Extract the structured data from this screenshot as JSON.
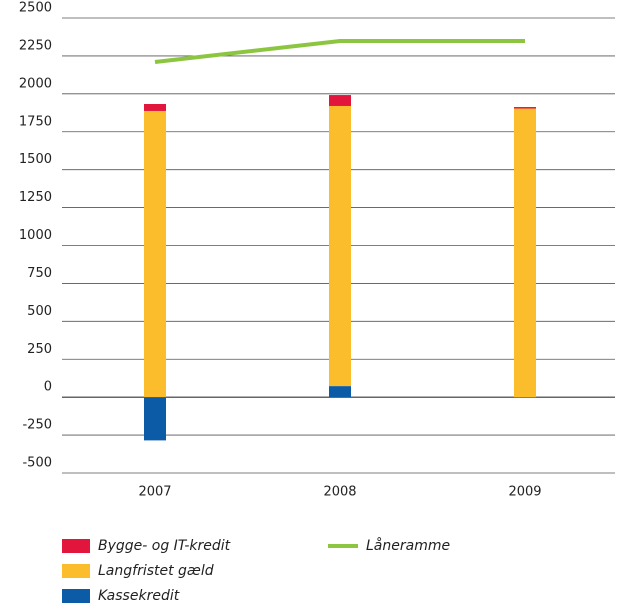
{
  "chart_data": {
    "type": "bar",
    "categories": [
      "2007",
      "2008",
      "2009"
    ],
    "series": [
      {
        "name": "Kassekredit",
        "color": "#0b5ba6",
        "values": [
          -285,
          73,
          0
        ]
      },
      {
        "name": "Langfristet gæld",
        "color": "#fbbd2b",
        "values": [
          1887,
          1847,
          1903
        ]
      },
      {
        "name": "Bygge- og IT-kredit",
        "color": "#e2163d",
        "values": [
          46,
          72,
          10
        ]
      },
      {
        "name": "Låneramme",
        "color": "#8cc640",
        "type": "line",
        "values": [
          2210,
          2348,
          2348
        ]
      }
    ],
    "ylim": [
      -500,
      2500
    ],
    "yticks": [
      -500,
      -250,
      0,
      250,
      500,
      750,
      1000,
      1250,
      1500,
      1750,
      2000,
      2250,
      2500
    ],
    "grid": true
  }
}
